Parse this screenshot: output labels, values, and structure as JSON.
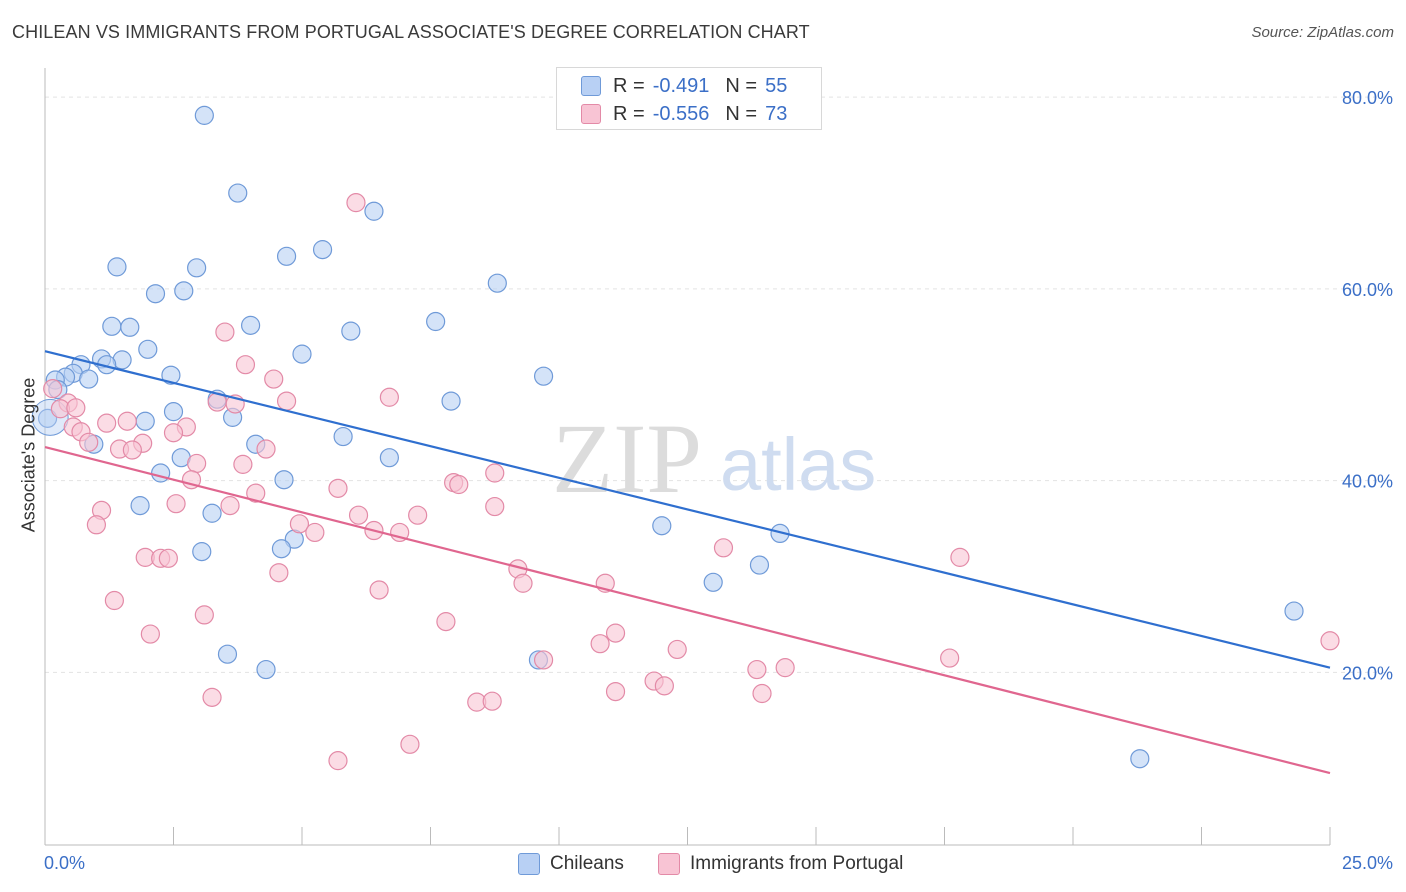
{
  "header": {
    "title": "CHILEAN VS IMMIGRANTS FROM PORTUGAL ASSOCIATE'S DEGREE CORRELATION CHART",
    "source": "Source: ZipAtlas.com"
  },
  "legend": {
    "rows": [
      {
        "r_label": "R =",
        "r_value": "-0.491",
        "n_label": "N =",
        "n_value": "55"
      },
      {
        "r_label": "R =",
        "r_value": "-0.556",
        "n_label": "N =",
        "n_value": "73"
      }
    ],
    "bottom": [
      "Chileans",
      "Immigrants from Portugal"
    ]
  },
  "colors": {
    "blue_fill": "#b8d0f4",
    "blue_stroke": "#6f9ad8",
    "blue_line": "#2f6fcf",
    "pink_fill": "#f8c4d4",
    "pink_stroke": "#e38aa7",
    "pink_line": "#e0668f",
    "axis_text": "#3b6fc7",
    "grid": "#e3e3e3"
  },
  "watermark": {
    "zip": "ZIP",
    "atlas": "atlas"
  },
  "chart_data": {
    "type": "scatter",
    "xlabel": "",
    "ylabel": "Associate's Degree",
    "xlim": [
      0,
      25
    ],
    "ylim": [
      2,
      82
    ],
    "x_tick_labels": [
      "0.0%",
      "25.0%"
    ],
    "y_ticks": [
      20,
      40,
      60,
      80
    ],
    "y_tick_labels": [
      "20.0%",
      "40.0%",
      "60.0%",
      "80.0%"
    ],
    "grid": true,
    "series": [
      {
        "name": "Chileans",
        "trend": [
          [
            0,
            53.5
          ],
          [
            25,
            20.5
          ]
        ],
        "points": [
          [
            3.1,
            78.1
          ],
          [
            3.75,
            70.0
          ],
          [
            6.4,
            68.1
          ],
          [
            5.4,
            64.1
          ],
          [
            4.7,
            63.4
          ],
          [
            1.4,
            62.3
          ],
          [
            2.95,
            62.2
          ],
          [
            2.7,
            59.8
          ],
          [
            2.15,
            59.5
          ],
          [
            8.8,
            60.6
          ],
          [
            1.3,
            56.1
          ],
          [
            1.65,
            56.0
          ],
          [
            4.0,
            56.2
          ],
          [
            7.6,
            56.6
          ],
          [
            5.95,
            55.6
          ],
          [
            2.0,
            53.7
          ],
          [
            5.0,
            53.2
          ],
          [
            1.1,
            52.7
          ],
          [
            1.5,
            52.6
          ],
          [
            0.7,
            52.1
          ],
          [
            1.2,
            52.1
          ],
          [
            0.55,
            51.2
          ],
          [
            0.4,
            50.8
          ],
          [
            0.2,
            50.5
          ],
          [
            0.85,
            50.6
          ],
          [
            2.45,
            51.0
          ],
          [
            9.7,
            50.9
          ],
          [
            0.25,
            49.5
          ],
          [
            3.35,
            48.5
          ],
          [
            7.9,
            48.3
          ],
          [
            2.5,
            47.2
          ],
          [
            3.65,
            46.6
          ],
          [
            0.05,
            46.5
          ],
          [
            1.95,
            46.2
          ],
          [
            5.8,
            44.6
          ],
          [
            0.95,
            43.8
          ],
          [
            4.1,
            43.8
          ],
          [
            2.65,
            42.4
          ],
          [
            6.7,
            42.4
          ],
          [
            2.25,
            40.8
          ],
          [
            4.65,
            40.1
          ],
          [
            1.85,
            37.4
          ],
          [
            3.25,
            36.6
          ],
          [
            12.0,
            35.3
          ],
          [
            14.3,
            34.5
          ],
          [
            4.85,
            33.9
          ],
          [
            4.6,
            32.9
          ],
          [
            3.05,
            32.6
          ],
          [
            13.9,
            31.2
          ],
          [
            13.0,
            29.4
          ],
          [
            24.3,
            26.4
          ],
          [
            3.55,
            21.9
          ],
          [
            4.3,
            20.3
          ],
          [
            9.6,
            21.3
          ],
          [
            21.3,
            11.0
          ]
        ]
      },
      {
        "name": "Immigrants from Portugal",
        "trend": [
          [
            0,
            43.5
          ],
          [
            25,
            9.5
          ]
        ],
        "points": [
          [
            6.05,
            69.0
          ],
          [
            3.5,
            55.5
          ],
          [
            3.9,
            52.1
          ],
          [
            4.45,
            50.6
          ],
          [
            6.7,
            48.7
          ],
          [
            0.15,
            49.6
          ],
          [
            0.45,
            48.1
          ],
          [
            3.35,
            48.2
          ],
          [
            3.7,
            48.0
          ],
          [
            4.7,
            48.3
          ],
          [
            0.3,
            47.5
          ],
          [
            0.6,
            47.6
          ],
          [
            1.6,
            46.2
          ],
          [
            1.2,
            46.0
          ],
          [
            2.75,
            45.6
          ],
          [
            0.55,
            45.6
          ],
          [
            0.7,
            45.1
          ],
          [
            2.5,
            45.0
          ],
          [
            0.85,
            44.0
          ],
          [
            1.9,
            43.9
          ],
          [
            1.45,
            43.3
          ],
          [
            1.7,
            43.2
          ],
          [
            4.3,
            43.3
          ],
          [
            2.95,
            41.8
          ],
          [
            3.85,
            41.7
          ],
          [
            8.75,
            40.8
          ],
          [
            2.85,
            40.1
          ],
          [
            7.95,
            39.8
          ],
          [
            8.05,
            39.6
          ],
          [
            5.7,
            39.2
          ],
          [
            4.1,
            38.7
          ],
          [
            2.55,
            37.6
          ],
          [
            3.6,
            37.4
          ],
          [
            8.75,
            37.3
          ],
          [
            1.1,
            36.9
          ],
          [
            6.1,
            36.4
          ],
          [
            7.25,
            36.4
          ],
          [
            1.0,
            35.4
          ],
          [
            4.95,
            35.5
          ],
          [
            5.25,
            34.6
          ],
          [
            6.4,
            34.8
          ],
          [
            6.9,
            34.6
          ],
          [
            13.2,
            33.0
          ],
          [
            17.8,
            32.0
          ],
          [
            1.95,
            32.0
          ],
          [
            2.25,
            31.9
          ],
          [
            2.4,
            31.9
          ],
          [
            9.2,
            30.8
          ],
          [
            4.55,
            30.4
          ],
          [
            9.3,
            29.3
          ],
          [
            10.9,
            29.3
          ],
          [
            6.5,
            28.6
          ],
          [
            1.35,
            27.5
          ],
          [
            3.1,
            26.0
          ],
          [
            7.8,
            25.3
          ],
          [
            25.0,
            23.3
          ],
          [
            11.1,
            24.1
          ],
          [
            10.8,
            23.0
          ],
          [
            12.3,
            22.4
          ],
          [
            17.6,
            21.5
          ],
          [
            2.05,
            24.0
          ],
          [
            9.7,
            21.3
          ],
          [
            13.85,
            20.3
          ],
          [
            14.4,
            20.5
          ],
          [
            11.85,
            19.1
          ],
          [
            12.05,
            18.6
          ],
          [
            11.1,
            18.0
          ],
          [
            13.95,
            17.8
          ],
          [
            3.25,
            17.4
          ],
          [
            8.4,
            16.9
          ],
          [
            8.7,
            17.0
          ],
          [
            7.1,
            12.5
          ],
          [
            5.7,
            10.8
          ]
        ]
      }
    ]
  }
}
